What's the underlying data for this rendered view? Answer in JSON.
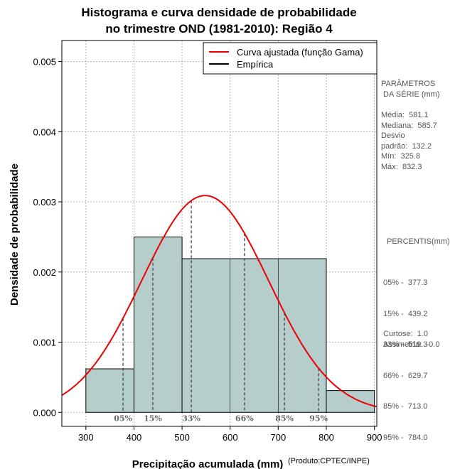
{
  "chart_data": {
    "type": "histogram",
    "title_line1": "Histograma e curva densidade de probabilidade",
    "title_line2": "no trimestre OND (1981-2010): Região 4",
    "xlabel": "Precipitação acumulada (mm)",
    "ylabel": "Densidade de probabilidade",
    "credit": "(Produto:CPTEC/INPE)",
    "xlim": [
      250,
      905
    ],
    "ylim": [
      -0.0002,
      0.0053
    ],
    "x_ticks": [
      300,
      400,
      500,
      600,
      700,
      800,
      900
    ],
    "y_ticks": [
      "0.000",
      "0.001",
      "0.002",
      "0.003",
      "0.004",
      "0.005"
    ],
    "grid": true,
    "bins": [
      {
        "from": 300,
        "to": 400,
        "density": 0.00062
      },
      {
        "from": 400,
        "to": 500,
        "density": 0.0025
      },
      {
        "from": 500,
        "to": 800,
        "density": 0.00219
      },
      {
        "from": 800,
        "to": 900,
        "density": 0.00031
      }
    ],
    "inner_bin_edges": [
      600,
      700
    ],
    "gamma_fit": {
      "mean": 581.1,
      "sd": 132.2,
      "peak_density": 0.00309
    },
    "colors": {
      "bar_fill": "#b5cdcb",
      "curve": "#ee0000",
      "empirical": "#000000",
      "grid": "#b0b0b0"
    },
    "legend": [
      {
        "label": "Curva ajustada (função Gama)",
        "color": "#ee0000"
      },
      {
        "label": "Empírica",
        "color": "#000000"
      }
    ],
    "percentiles": [
      {
        "label": "05%",
        "value": 377.3
      },
      {
        "label": "15%",
        "value": 439.2
      },
      {
        "label": "33%",
        "value": 519.3
      },
      {
        "label": "66%",
        "value": 629.7
      },
      {
        "label": "85%",
        "value": 713.0
      },
      {
        "label": "95%",
        "value": 784.0
      }
    ]
  },
  "stats_panel": {
    "params_title_1": "PARÂMETROS",
    "params_title_2": " DA SÉRIE (mm)",
    "media": "Média:  581.1",
    "mediana": "Mediana:  585.7",
    "desvio_1": "Desvio",
    "desvio_2": "padrão:  132.2",
    "min": "Mín:  325.8",
    "max": "Máx:  832.3",
    "percentis_title": "PERCENTIS(mm)",
    "percentis_rows": [
      "05% -  377.3",
      "15% -  439.2",
      "33% -  519.3",
      "66% -  629.7",
      "85% -  713.0",
      "95% -  784.0"
    ],
    "curtose": "Curtose:  1.0",
    "assimetria": "Assimetria:  -0.0"
  }
}
